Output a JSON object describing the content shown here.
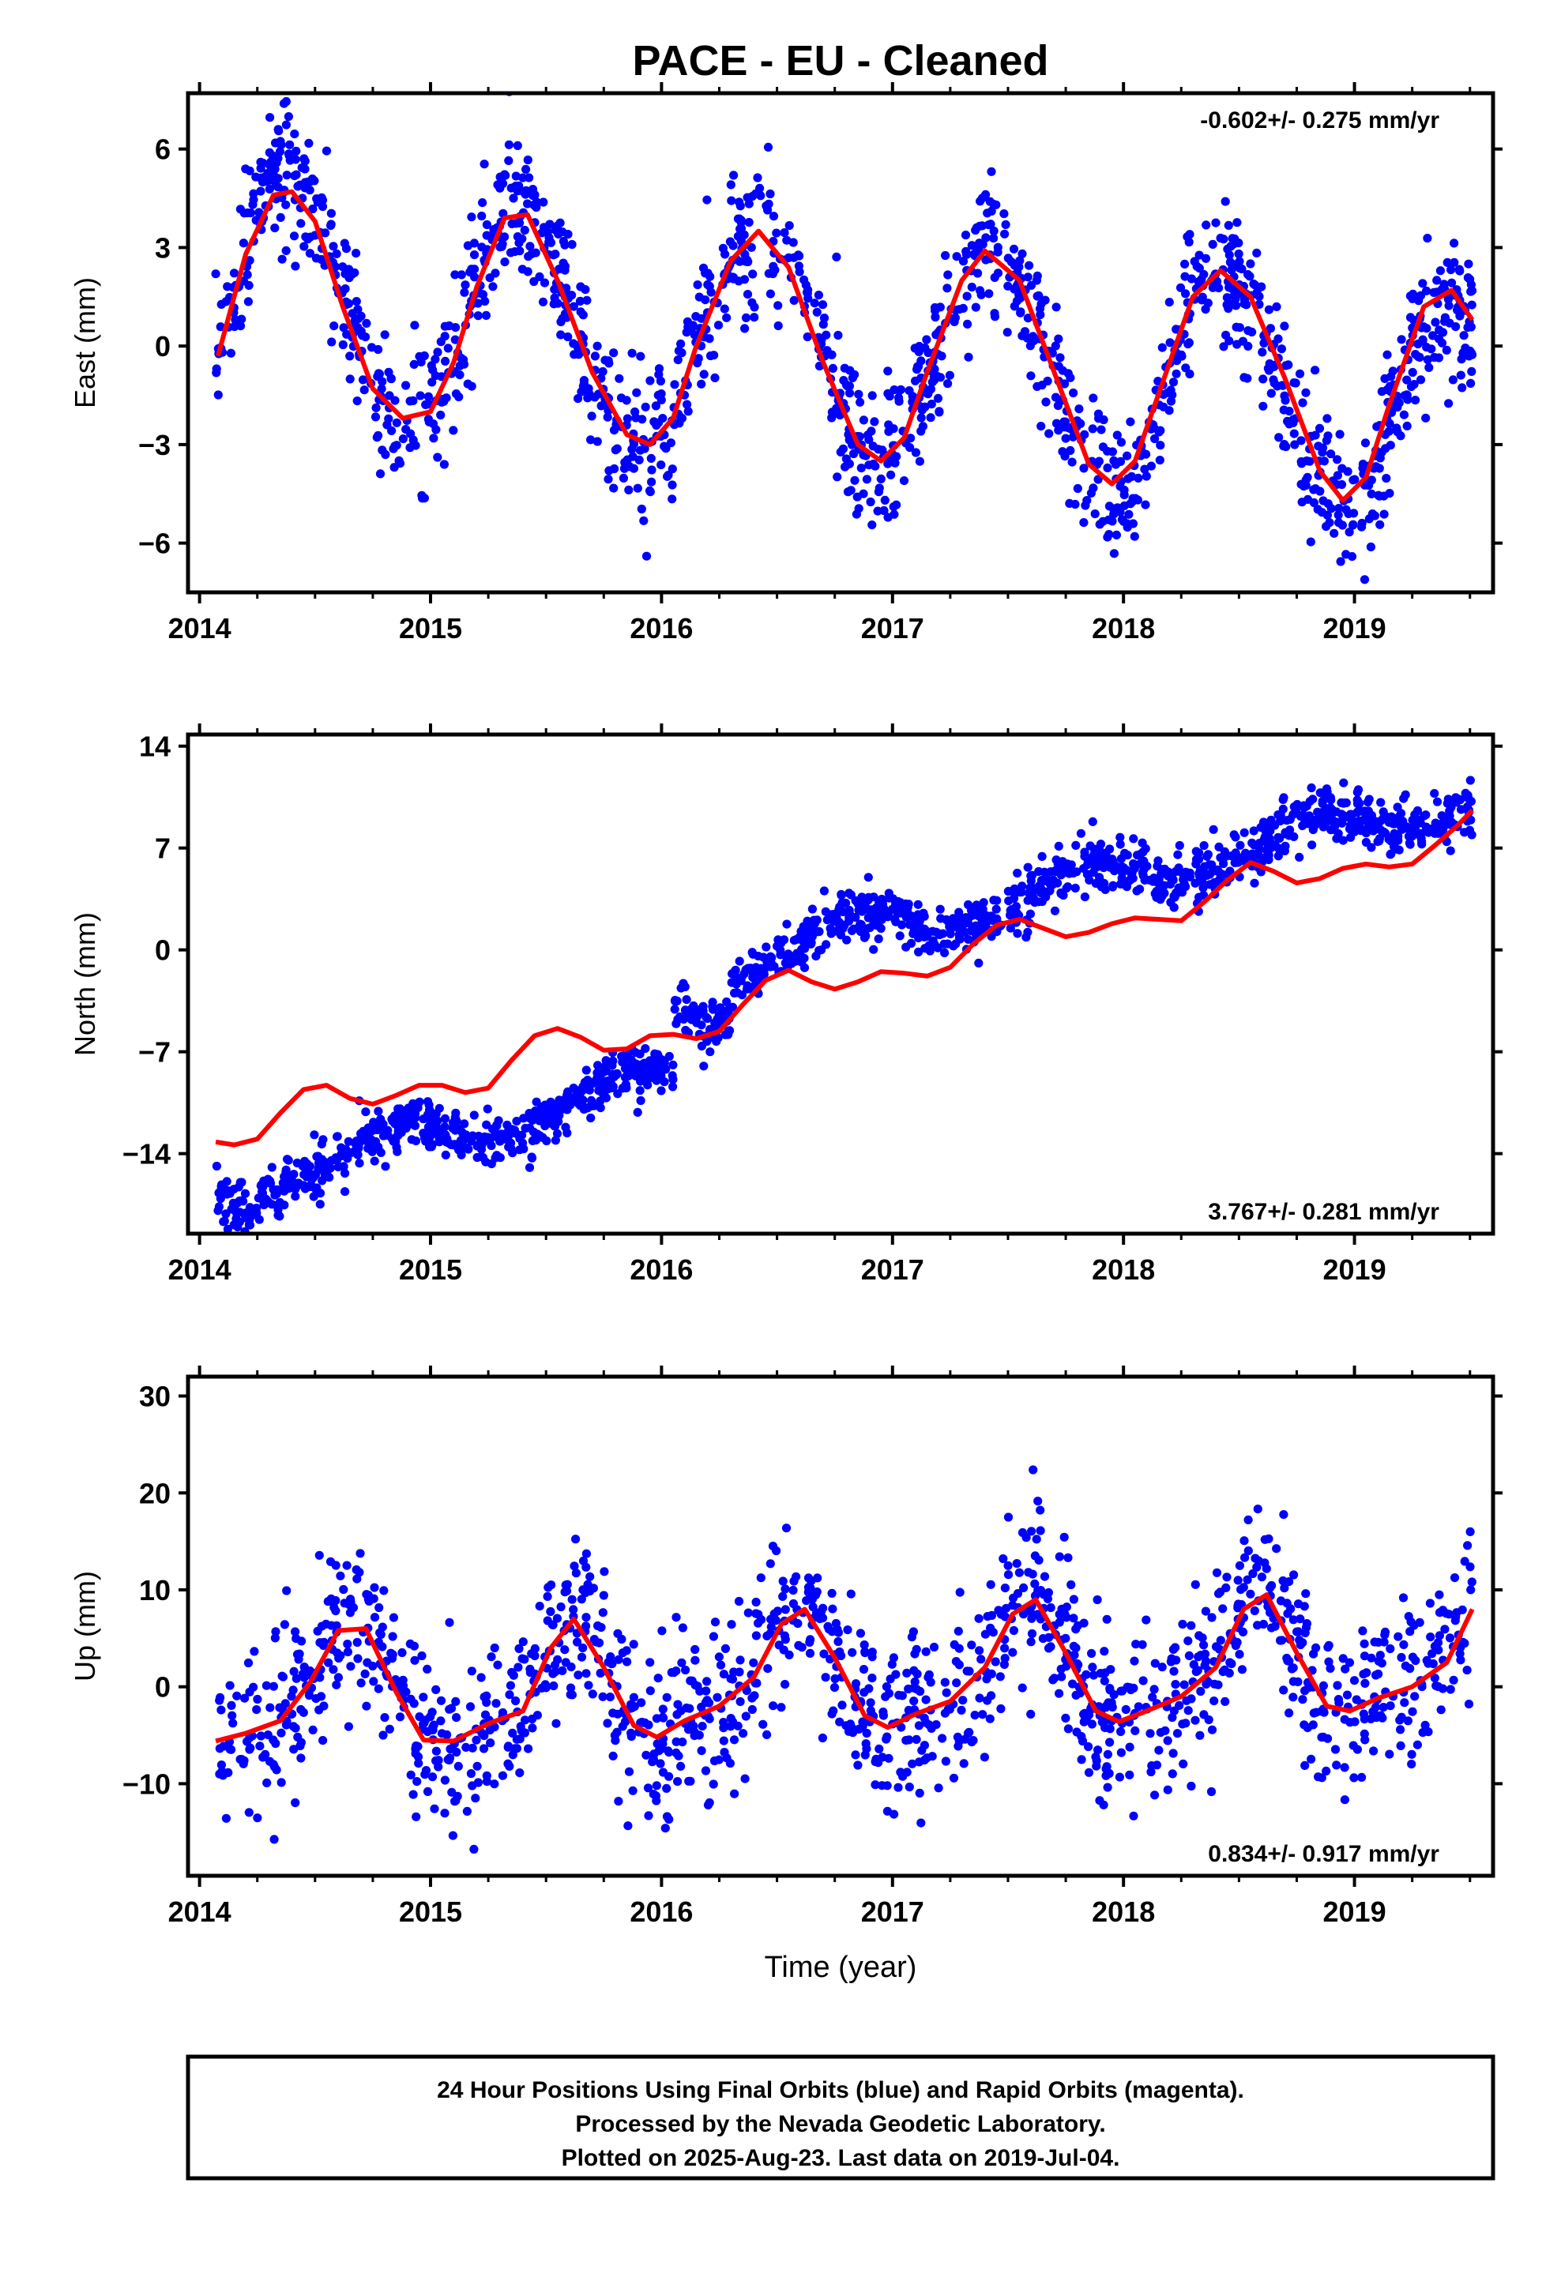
{
  "title": "PACE  - EU - Cleaned",
  "caption": {
    "lines": [
      "24 Hour Positions Using Final Orbits (blue) and Rapid Orbits (magenta).",
      "Processed by the Nevada Geodetic Laboratory.",
      "Plotted on 2025-Aug-23. Last data on 2019-Jul-04."
    ]
  },
  "colors": {
    "points": "#0000ff",
    "fit": "#ff0000",
    "frame": "#000000"
  },
  "chart_data": [
    {
      "type": "scatter",
      "ylabel": "East (mm)",
      "xlabel": "",
      "xlim": [
        2013.95,
        2019.6
      ],
      "ylim": [
        -7.5,
        7.7
      ],
      "yticks": [
        -6,
        -3,
        0,
        3,
        6
      ],
      "xticks": [
        2014,
        2015,
        2016,
        2017,
        2018,
        2019
      ],
      "yticklabels": [
        "−6",
        "−3",
        "0",
        "3",
        "6"
      ],
      "xticklabels": [
        "2014",
        "2015",
        "2016",
        "2017",
        "2018",
        "2019"
      ],
      "rate_label": "-0.602+/- 0.275 mm/yr",
      "rate_position": "top-right",
      "data_span": [
        2014.07,
        2019.51
      ],
      "series": [
        {
          "kind": "fit",
          "x": [
            2014.08,
            2014.2,
            2014.32,
            2014.4,
            2014.5,
            2014.62,
            2014.75,
            2014.88,
            2015.0,
            2015.1,
            2015.2,
            2015.32,
            2015.42,
            2015.55,
            2015.7,
            2015.85,
            2015.95,
            2016.05,
            2016.15,
            2016.3,
            2016.42,
            2016.55,
            2016.7,
            2016.85,
            2016.95,
            2017.05,
            2017.15,
            2017.3,
            2017.4,
            2017.55,
            2017.7,
            2017.85,
            2017.95,
            2018.05,
            2018.15,
            2018.3,
            2018.42,
            2018.55,
            2018.7,
            2018.85,
            2018.95,
            2019.05,
            2019.15,
            2019.3,
            2019.42,
            2019.51
          ],
          "y": [
            -0.3,
            2.8,
            4.6,
            4.7,
            3.8,
            1.2,
            -1.3,
            -2.2,
            -2.0,
            -0.5,
            1.8,
            3.9,
            4.0,
            2.0,
            -0.8,
            -2.7,
            -3.0,
            -2.2,
            0.0,
            2.6,
            3.5,
            2.4,
            -0.5,
            -3.0,
            -3.5,
            -2.8,
            -0.8,
            2.0,
            2.9,
            2.0,
            -0.8,
            -3.6,
            -4.2,
            -3.5,
            -1.5,
            1.5,
            2.3,
            1.5,
            -1.0,
            -3.8,
            -4.7,
            -4.0,
            -1.8,
            1.2,
            1.7,
            0.8
          ]
        },
        {
          "kind": "points",
          "model": {
            "amp": [
              3.6,
              3.8,
              3.2,
              3.3,
              3.3,
              3.4
            ],
            "center": [
              1.2,
              0.9,
              0.5,
              -0.3,
              -1.0,
              -1.5
            ],
            "phase": 1.4,
            "noise": 1.1,
            "samples": 1600,
            "seed": 11
          }
        }
      ]
    },
    {
      "type": "scatter",
      "ylabel": "North (mm)",
      "xlabel": "",
      "xlim": [
        2013.95,
        2019.6
      ],
      "ylim": [
        -19.5,
        14.8
      ],
      "yticks": [
        -14,
        -7,
        0,
        7,
        14
      ],
      "xticks": [
        2014,
        2015,
        2016,
        2017,
        2018,
        2019
      ],
      "yticklabels": [
        "−14",
        "−7",
        "0",
        "7",
        "14"
      ],
      "xticklabels": [
        "2014",
        "2015",
        "2016",
        "2017",
        "2018",
        "2019"
      ],
      "rate_label": "3.767+/- 0.281 mm/yr",
      "rate_position": "bottom-right",
      "data_span": [
        2014.07,
        2019.51
      ],
      "series": [
        {
          "kind": "fit",
          "x": [
            2014.07,
            2014.15,
            2014.25,
            2014.35,
            2014.45,
            2014.55,
            2014.65,
            2014.75,
            2014.85,
            2014.95,
            2015.05,
            2015.15,
            2015.25,
            2015.35,
            2015.45,
            2015.55,
            2015.65,
            2015.75,
            2015.85,
            2015.95,
            2016.05,
            2016.15,
            2016.25,
            2016.35,
            2016.45,
            2016.55,
            2016.65,
            2016.75,
            2016.85,
            2016.95,
            2017.05,
            2017.15,
            2017.25,
            2017.35,
            2017.45,
            2017.55,
            2017.65,
            2017.75,
            2017.85,
            2017.95,
            2018.05,
            2018.15,
            2018.25,
            2018.35,
            2018.45,
            2018.55,
            2018.65,
            2018.75,
            2018.85,
            2018.95,
            2019.05,
            2019.15,
            2019.25,
            2019.35,
            2019.45,
            2019.51
          ],
          "y": [
            -13.2,
            -13.4,
            -13.0,
            -11.2,
            -9.6,
            -9.3,
            -10.2,
            -10.6,
            -10.0,
            -9.3,
            -9.3,
            -9.8,
            -9.5,
            -7.6,
            -5.9,
            -5.4,
            -6.0,
            -6.9,
            -6.8,
            -5.9,
            -5.8,
            -6.1,
            -5.6,
            -3.8,
            -2.1,
            -1.4,
            -2.2,
            -2.7,
            -2.2,
            -1.5,
            -1.6,
            -1.8,
            -1.2,
            0.4,
            1.7,
            2.1,
            1.5,
            0.9,
            1.2,
            1.8,
            2.2,
            2.1,
            2.0,
            3.3,
            4.8,
            6.0,
            5.4,
            4.6,
            4.9,
            5.6,
            5.9,
            5.7,
            5.9,
            7.2,
            8.6,
            9.6
          ]
        },
        {
          "kind": "points",
          "model": {
            "segments": [
              {
                "x0": 2014.07,
                "x1": 2014.24,
                "y0": -17.0,
                "y1": -17.0
              },
              {
                "x0": 2014.24,
                "x1": 2016.05,
                "y0": -15.5,
                "y1": -9.0
              },
              {
                "x0": 2016.05,
                "x1": 2016.3,
                "y0": -4.5,
                "y1": -3.5
              },
              {
                "x0": 2016.3,
                "x1": 2019.51,
                "y0": -0.8,
                "y1": 10.3
              }
            ],
            "amp": 1.3,
            "phase": 2.6,
            "noise": 0.9,
            "samples": 1600,
            "seed": 23
          }
        }
      ]
    },
    {
      "type": "scatter",
      "ylabel": "Up (mm)",
      "xlabel": "Time (year)",
      "xlim": [
        2013.95,
        2019.6
      ],
      "ylim": [
        -19.5,
        32.0
      ],
      "yticks": [
        -10,
        0,
        10,
        20,
        30
      ],
      "xticks": [
        2014,
        2015,
        2016,
        2017,
        2018,
        2019
      ],
      "yticklabels": [
        "−10",
        "0",
        "10",
        "20",
        "30"
      ],
      "xticklabels": [
        "2014",
        "2015",
        "2016",
        "2017",
        "2018",
        "2019"
      ],
      "rate_label": "0.834+/- 0.917 mm/yr",
      "rate_position": "bottom-right",
      "data_span": [
        2014.07,
        2019.51
      ],
      "series": [
        {
          "kind": "fit",
          "x": [
            2014.07,
            2014.2,
            2014.35,
            2014.48,
            2014.6,
            2014.72,
            2014.85,
            2014.97,
            2015.1,
            2015.25,
            2015.4,
            2015.52,
            2015.62,
            2015.75,
            2015.88,
            2015.98,
            2016.1,
            2016.25,
            2016.4,
            2016.52,
            2016.62,
            2016.75,
            2016.88,
            2016.98,
            2017.1,
            2017.25,
            2017.4,
            2017.52,
            2017.62,
            2017.75,
            2017.88,
            2017.98,
            2018.1,
            2018.25,
            2018.4,
            2018.52,
            2018.62,
            2018.75,
            2018.88,
            2018.98,
            2019.1,
            2019.25,
            2019.4,
            2019.51
          ],
          "y": [
            -5.6,
            -4.8,
            -3.5,
            0.5,
            5.8,
            6.0,
            -0.5,
            -5.5,
            -5.6,
            -3.8,
            -2.5,
            4.0,
            7.0,
            2.0,
            -4.0,
            -5.2,
            -3.5,
            -2.0,
            1.0,
            6.5,
            8.0,
            3.0,
            -3.0,
            -4.2,
            -2.8,
            -1.5,
            2.0,
            7.5,
            9.0,
            3.5,
            -2.5,
            -3.6,
            -2.5,
            -1.0,
            2.0,
            8.0,
            9.5,
            3.5,
            -2.0,
            -2.5,
            -1.2,
            0.0,
            2.5,
            8.0
          ]
        },
        {
          "kind": "points",
          "model": {
            "amp": 6.0,
            "phase": 3.9,
            "noise": 4.3,
            "samples": 1400,
            "seed": 37
          }
        }
      ]
    }
  ]
}
